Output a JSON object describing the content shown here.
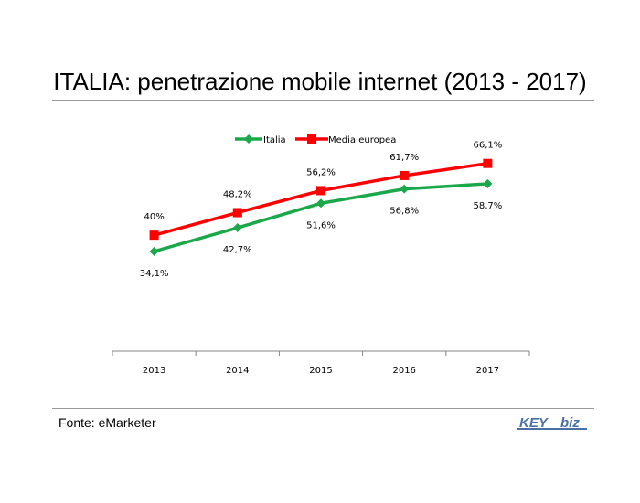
{
  "header": {
    "title": "ITALIA: penetrazione mobile internet (2013 - 2017)"
  },
  "footer": {
    "source": "Fonte: eMarketer"
  },
  "logo": {
    "text_a": "KEY",
    "text_b": "biz",
    "color": "#4a6fa5"
  },
  "chart_data": {
    "type": "line",
    "categories": [
      "2013",
      "2014",
      "2015",
      "2016",
      "2017"
    ],
    "series": [
      {
        "name": "Italia",
        "color": "#1aa84a",
        "marker": "diamond",
        "values": [
          34.1,
          42.7,
          51.6,
          56.8,
          58.7
        ],
        "labels": [
          "34,1%",
          "42,7%",
          "51,6%",
          "56,8%",
          "58,7%"
        ],
        "label_position": "below"
      },
      {
        "name": "Media europea",
        "color": "#ff0000",
        "marker": "square",
        "values": [
          40,
          48.2,
          56.2,
          61.7,
          66.1
        ],
        "labels": [
          "40%",
          "48,2%",
          "56,2%",
          "61,7%",
          "66,1%"
        ],
        "label_position": "above"
      }
    ],
    "legend_position": "top-center",
    "grid": false,
    "y_axis_visible": false
  }
}
